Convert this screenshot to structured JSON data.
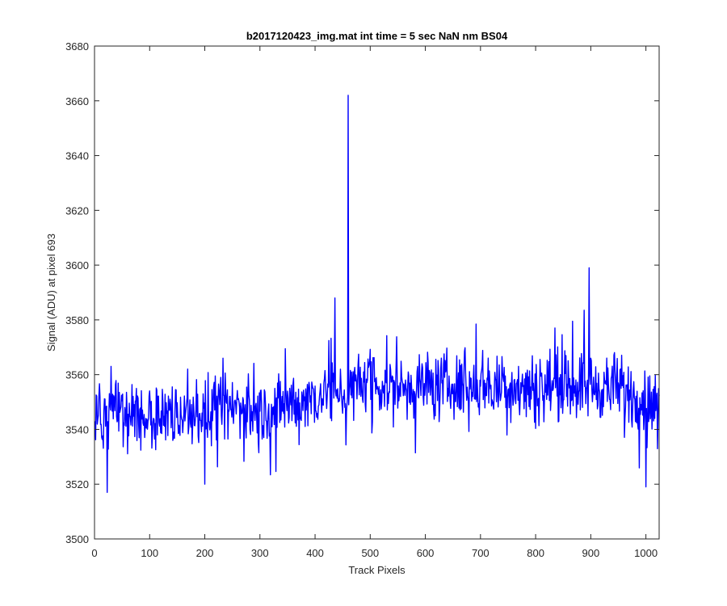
{
  "chart_data": {
    "type": "line",
    "title": "b2017120423_img.mat int time = 5 sec  NaN nm BS04",
    "xlabel": "Track Pixels",
    "ylabel": "Signal (ADU) at pixel 693",
    "xlim": [
      0,
      1024
    ],
    "ylim": [
      3500,
      3680
    ],
    "xticks": [
      0,
      100,
      200,
      300,
      400,
      500,
      600,
      700,
      800,
      900,
      1000
    ],
    "yticks": [
      3500,
      3520,
      3540,
      3560,
      3580,
      3600,
      3620,
      3640,
      3660,
      3680
    ],
    "grid": false,
    "legend": "none",
    "series": [
      {
        "color": "#0000ff",
        "x": [
          0,
          10,
          20,
          30,
          40,
          50,
          60,
          70,
          80,
          90,
          100,
          110,
          120,
          130,
          140,
          150,
          160,
          170,
          180,
          190,
          200,
          210,
          220,
          230,
          240,
          250,
          260,
          270,
          280,
          290,
          300,
          310,
          320,
          330,
          340,
          350,
          360,
          370,
          380,
          390,
          400,
          410,
          420,
          430,
          440,
          450,
          455,
          460,
          465,
          470,
          480,
          490,
          500,
          510,
          520,
          530,
          540,
          550,
          560,
          570,
          580,
          590,
          600,
          610,
          620,
          630,
          640,
          650,
          660,
          670,
          680,
          690,
          700,
          710,
          720,
          730,
          740,
          750,
          760,
          770,
          780,
          790,
          800,
          810,
          820,
          830,
          840,
          850,
          860,
          870,
          880,
          890,
          895,
          900,
          910,
          920,
          930,
          940,
          950,
          960,
          970,
          980,
          990,
          1000,
          1010,
          1020,
          1024
        ],
        "y": [
          3545,
          3547,
          3544,
          3546,
          3545,
          3546,
          3545,
          3547,
          3546,
          3545,
          3546,
          3545,
          3544,
          3545,
          3546,
          3545,
          3546,
          3545,
          3546,
          3547,
          3546,
          3545,
          3547,
          3546,
          3548,
          3547,
          3549,
          3548,
          3547,
          3546,
          3546,
          3547,
          3546,
          3547,
          3548,
          3549,
          3550,
          3549,
          3551,
          3552,
          3551,
          3553,
          3554,
          3553,
          3555,
          3554,
          3556,
          3662,
          3553,
          3555,
          3556,
          3557,
          3555,
          3556,
          3555,
          3557,
          3556,
          3557,
          3555,
          3556,
          3555,
          3556,
          3557,
          3556,
          3555,
          3556,
          3557,
          3556,
          3555,
          3556,
          3555,
          3557,
          3556,
          3557,
          3556,
          3555,
          3556,
          3557,
          3556,
          3555,
          3556,
          3557,
          3556,
          3555,
          3556,
          3557,
          3556,
          3555,
          3556,
          3557,
          3556,
          3555,
          3599,
          3556,
          3555,
          3556,
          3555,
          3556,
          3555,
          3554,
          3553,
          3552,
          3551,
          3550,
          3549,
          3548,
          3546
        ],
        "noise_amplitude": 7,
        "min_value": 3517,
        "max_value": 3662
      }
    ]
  }
}
